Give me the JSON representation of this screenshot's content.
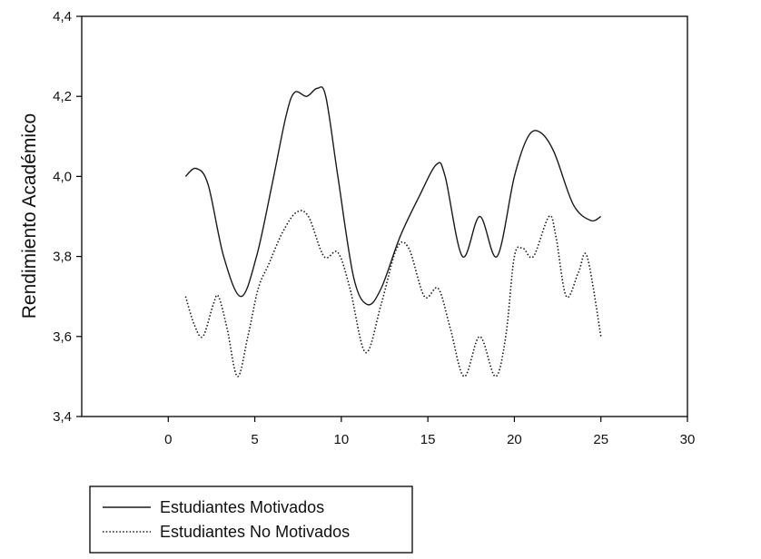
{
  "chart_data": {
    "type": "line",
    "title": "",
    "xlabel": "",
    "ylabel": "Rendimiento Académico",
    "xlim": [
      -5,
      30
    ],
    "ylim": [
      3.4,
      4.4
    ],
    "x_ticks": [
      0,
      5,
      10,
      15,
      20,
      25,
      30
    ],
    "x_tick_labels": [
      "0",
      "5",
      "10",
      "15",
      "20",
      "25",
      "30"
    ],
    "y_ticks": [
      3.4,
      3.6,
      3.8,
      4.0,
      4.2,
      4.4
    ],
    "y_tick_labels": [
      "3,4",
      "3,6",
      "3,8",
      "4,0",
      "4,2",
      "4,4"
    ],
    "grid": false,
    "legend_position": "bottom-left",
    "series": [
      {
        "name": "Estudiantes Motivados",
        "style": "solid",
        "color": "#1a1a1a",
        "points": [
          [
            1,
            4.0
          ],
          [
            1.6,
            4.02
          ],
          [
            2.3,
            3.98
          ],
          [
            3.2,
            3.8
          ],
          [
            4.2,
            3.7
          ],
          [
            5.1,
            3.8
          ],
          [
            6.0,
            3.98
          ],
          [
            6.8,
            4.15
          ],
          [
            7.3,
            4.21
          ],
          [
            8.0,
            4.2
          ],
          [
            8.6,
            4.22
          ],
          [
            9.1,
            4.2
          ],
          [
            9.8,
            4.0
          ],
          [
            10.7,
            3.75
          ],
          [
            11.5,
            3.68
          ],
          [
            12.3,
            3.72
          ],
          [
            13.4,
            3.85
          ],
          [
            14.5,
            3.95
          ],
          [
            15.5,
            4.03
          ],
          [
            16.0,
            4.0
          ],
          [
            17.0,
            3.8
          ],
          [
            18.0,
            3.9
          ],
          [
            19.0,
            3.8
          ],
          [
            20.0,
            4.0
          ],
          [
            20.8,
            4.1
          ],
          [
            21.5,
            4.11
          ],
          [
            22.3,
            4.06
          ],
          [
            23.4,
            3.93
          ],
          [
            24.4,
            3.89
          ],
          [
            25,
            3.9
          ]
        ]
      },
      {
        "name": "Estudiantes No Motivados",
        "style": "dotted",
        "color": "#1a1a1a",
        "points": [
          [
            1,
            3.7
          ],
          [
            1.5,
            3.63
          ],
          [
            2.0,
            3.6
          ],
          [
            2.6,
            3.68
          ],
          [
            2.9,
            3.7
          ],
          [
            3.4,
            3.62
          ],
          [
            4.0,
            3.5
          ],
          [
            4.6,
            3.6
          ],
          [
            5.2,
            3.72
          ],
          [
            5.8,
            3.78
          ],
          [
            6.6,
            3.86
          ],
          [
            7.4,
            3.91
          ],
          [
            8.1,
            3.9
          ],
          [
            9.0,
            3.8
          ],
          [
            9.8,
            3.81
          ],
          [
            10.5,
            3.72
          ],
          [
            11.4,
            3.56
          ],
          [
            12.3,
            3.68
          ],
          [
            13.2,
            3.82
          ],
          [
            13.9,
            3.82
          ],
          [
            14.8,
            3.7
          ],
          [
            15.6,
            3.72
          ],
          [
            16.3,
            3.62
          ],
          [
            17.1,
            3.5
          ],
          [
            18.0,
            3.6
          ],
          [
            18.9,
            3.5
          ],
          [
            19.5,
            3.6
          ],
          [
            20.0,
            3.8
          ],
          [
            20.5,
            3.82
          ],
          [
            21.1,
            3.8
          ],
          [
            22.0,
            3.9
          ],
          [
            22.4,
            3.85
          ],
          [
            23.0,
            3.7
          ],
          [
            23.7,
            3.76
          ],
          [
            24.2,
            3.8
          ],
          [
            25,
            3.6
          ]
        ]
      }
    ]
  }
}
